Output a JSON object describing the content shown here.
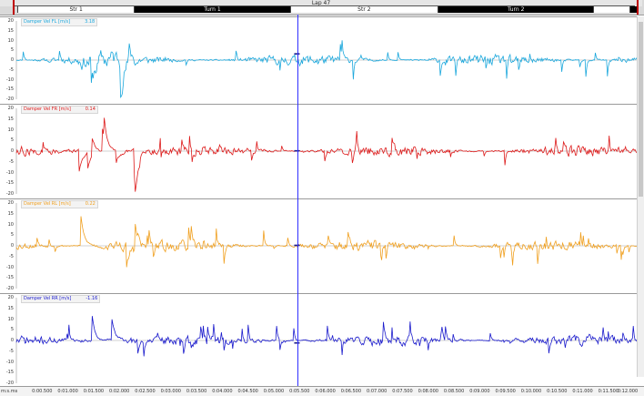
{
  "top_bar": {
    "lap_label": "Lap 47",
    "segments": [
      {
        "label": "Str 1",
        "style": "light",
        "start": 0.0,
        "end": 0.19
      },
      {
        "label": "Turn 1",
        "style": "dark",
        "start": 0.19,
        "end": 0.44
      },
      {
        "label": "Str 2",
        "style": "light",
        "start": 0.44,
        "end": 0.68
      },
      {
        "label": "Turn 2",
        "style": "dark",
        "start": 0.68,
        "end": 0.93
      },
      {
        "label": "",
        "style": "light",
        "start": 0.93,
        "end": 0.99
      },
      {
        "label": "",
        "style": "dark",
        "start": 0.99,
        "end": 1.0
      }
    ]
  },
  "x_axis": {
    "unit": "m:s.ms",
    "ticks": [
      "0:00.500",
      "0:01.000",
      "0:01.500",
      "0:02.000",
      "0:02.500",
      "0:03.000",
      "0:03.500",
      "0:04.000",
      "0:04.500",
      "0:05.000",
      "0:05.500",
      "0:06.000",
      "0:06.500",
      "0:07.000",
      "0:07.500",
      "0:08.000",
      "0:08.500",
      "0:09.000",
      "0:09.500",
      "0:10.000",
      "0:10.500",
      "0:11.000",
      "0:11.500",
      "0:12.000"
    ]
  },
  "cursor": {
    "time_s": 5.45
  },
  "chart_data": [
    {
      "type": "line",
      "name": "Damper Vel FL [m/s]",
      "cursor_value": "3.18",
      "color": "#1aa7dc",
      "seed": 11,
      "amp": 4.0,
      "spike_seed": 3,
      "ylim": [
        -20,
        20
      ],
      "yticks": [
        "20",
        "15",
        "10",
        "5",
        "0",
        "-5",
        "-10",
        "-15",
        "-20"
      ]
    },
    {
      "type": "line",
      "name": "Damper Vel FR [m/s]",
      "cursor_value": "0.14",
      "color": "#dd1a1a",
      "seed": 27,
      "amp": 3.6,
      "spike_seed": 9,
      "ylim": [
        -20,
        20
      ],
      "yticks": [
        "20",
        "15",
        "10",
        "5",
        "0",
        "-5",
        "-10",
        "-15",
        "-20"
      ]
    },
    {
      "type": "line",
      "name": "Damper Vel RL [m/s]",
      "cursor_value": "0.22",
      "color": "#f0a020",
      "seed": 53,
      "amp": 3.6,
      "spike_seed": 17,
      "ylim": [
        -20,
        20
      ],
      "yticks": [
        "20",
        "15",
        "10",
        "5",
        "0",
        "-5",
        "-10",
        "-15",
        "-20"
      ]
    },
    {
      "type": "line",
      "name": "Damper Vel RR [m/s]",
      "cursor_value": "-1.16",
      "color": "#1a1acc",
      "seed": 71,
      "amp": 3.6,
      "spike_seed": 23,
      "ylim": [
        -20,
        20
      ],
      "yticks": [
        "20",
        "15",
        "10",
        "5",
        "0",
        "-5",
        "-10",
        "-15",
        "-20"
      ]
    }
  ]
}
